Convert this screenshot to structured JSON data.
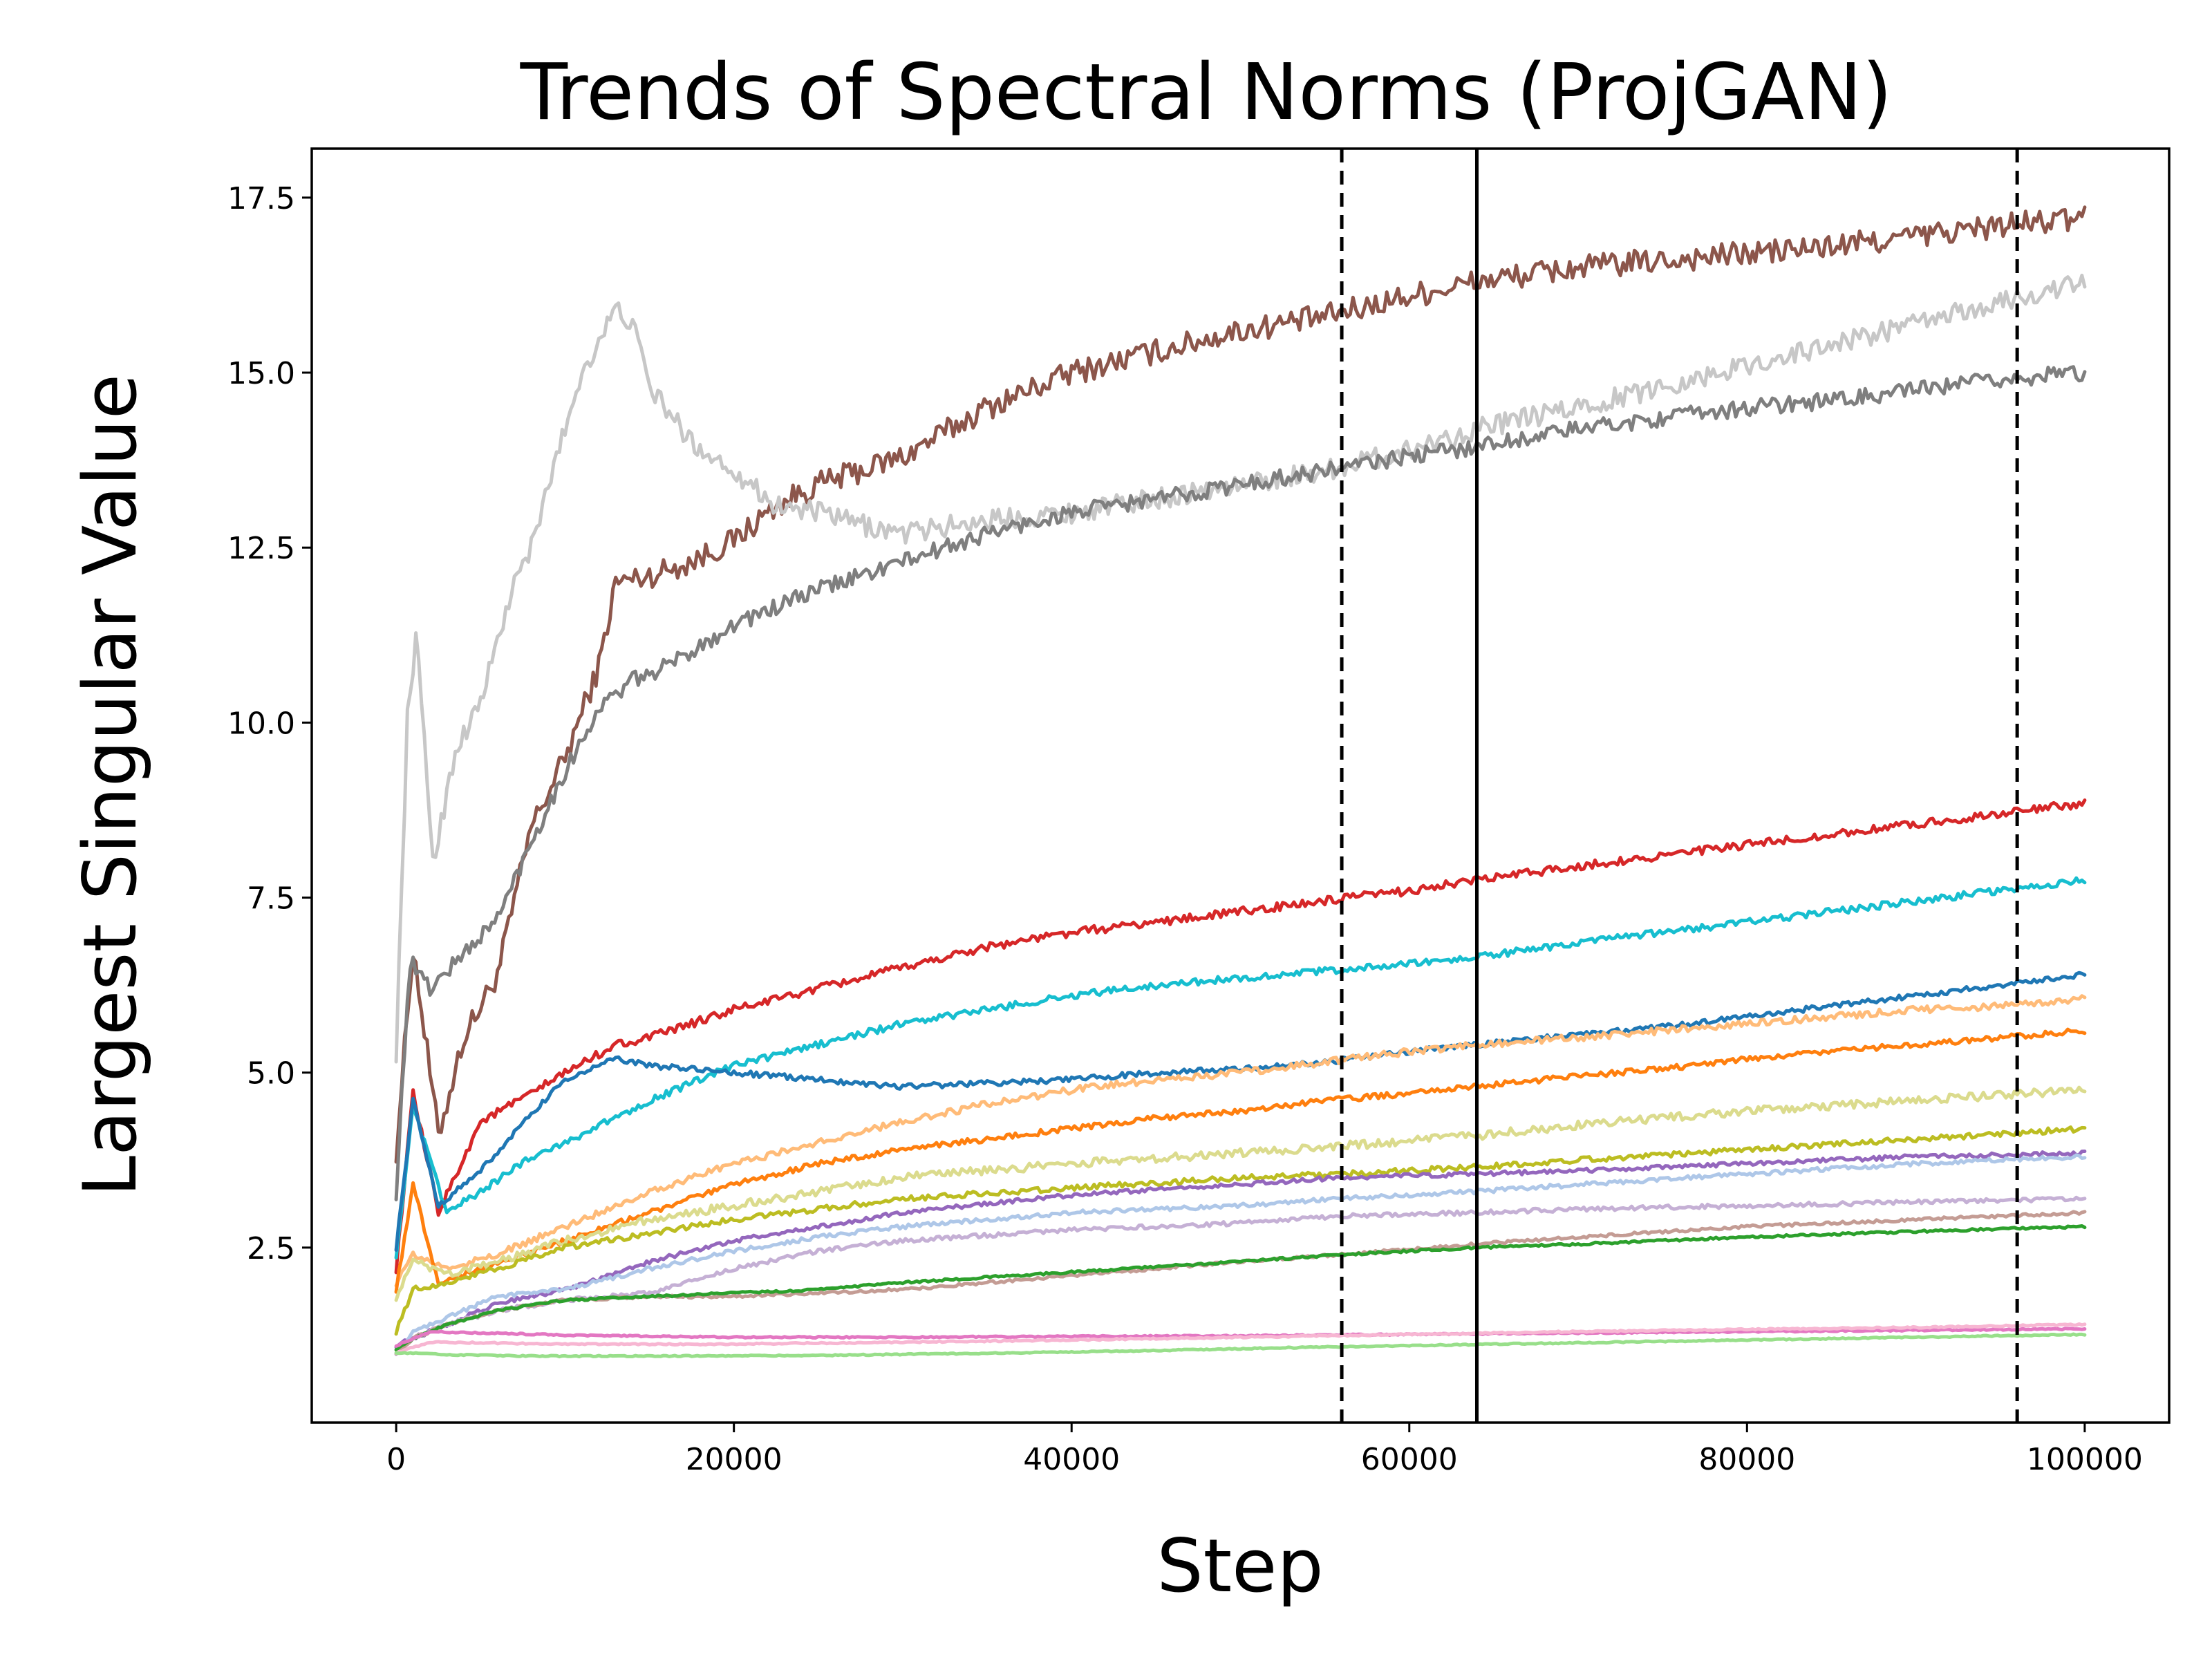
{
  "chart_data": {
    "type": "line",
    "title": "Trends of Spectral Norms (ProjGAN)",
    "xlabel": "Step",
    "ylabel": "Largest Singular Value",
    "xlim": [
      -5000,
      105000
    ],
    "ylim": [
      0,
      18.2
    ],
    "xticks": [
      0,
      20000,
      40000,
      60000,
      80000,
      100000
    ],
    "xtick_labels": [
      "0",
      "20000",
      "40000",
      "60000",
      "80000",
      "100000"
    ],
    "yticks": [
      2.5,
      5.0,
      7.5,
      10.0,
      12.5,
      15.0,
      17.5
    ],
    "ytick_labels": [
      "2.5",
      "5.0",
      "7.5",
      "10.0",
      "12.5",
      "15.0",
      "17.5"
    ],
    "grid": false,
    "vlines": [
      {
        "x": 56000,
        "style": "dashed"
      },
      {
        "x": 64000,
        "style": "solid"
      },
      {
        "x": 96000,
        "style": "dashed"
      }
    ],
    "series": [
      {
        "name": "brown",
        "color": "#8c564b",
        "noise": 0.18,
        "x": [
          0,
          1000,
          2500,
          4000,
          6000,
          8000,
          10000,
          12000,
          13000,
          15000,
          17500,
          20000,
          22500,
          25000,
          30000,
          35000,
          40000,
          45000,
          50000,
          55000,
          60000,
          64000,
          70000,
          75000,
          80000,
          85000,
          90000,
          95000,
          100000
        ],
        "values": [
          3.9,
          6.8,
          4.1,
          5.5,
          6.4,
          8.5,
          9.5,
          10.8,
          12.0,
          12.1,
          12.3,
          12.6,
          13.1,
          13.4,
          13.8,
          14.5,
          15.0,
          15.3,
          15.6,
          15.8,
          16.1,
          16.3,
          16.5,
          16.6,
          16.7,
          16.8,
          16.95,
          17.1,
          17.2
        ]
      },
      {
        "name": "light gray",
        "color": "#c7c7c7",
        "noise": 0.15,
        "x": [
          0,
          700,
          1200,
          2200,
          3500,
          5000,
          7000,
          8200,
          9000,
          11000,
          13000,
          14000,
          15000,
          17500,
          20000,
          22500,
          25000,
          28000,
          30000,
          35000,
          40000,
          45000,
          50000,
          55000,
          60000,
          64000,
          70000,
          75000,
          80000,
          85000,
          90000,
          95000,
          100000
        ],
        "values": [
          5.3,
          10.3,
          11.2,
          8.0,
          9.6,
          10.3,
          12.0,
          12.6,
          13.4,
          15.0,
          15.9,
          15.7,
          14.8,
          14.0,
          13.6,
          13.1,
          13.0,
          12.8,
          12.7,
          12.9,
          13.0,
          13.2,
          13.4,
          13.6,
          13.9,
          14.2,
          14.5,
          14.8,
          15.1,
          15.4,
          15.7,
          16.0,
          16.3
        ]
      },
      {
        "name": "gray",
        "color": "#7f7f7f",
        "noise": 0.12,
        "x": [
          0,
          800,
          2000,
          4000,
          6000,
          8000,
          10000,
          12000,
          14000,
          16000,
          20000,
          25000,
          30000,
          35000,
          40000,
          45000,
          50000,
          55000,
          60000,
          64000,
          70000,
          75000,
          80000,
          85000,
          90000,
          95000,
          100000
        ],
        "values": [
          3.3,
          6.6,
          6.2,
          6.7,
          7.2,
          8.3,
          9.3,
          10.2,
          10.6,
          10.8,
          11.4,
          11.9,
          12.3,
          12.7,
          13.0,
          13.2,
          13.4,
          13.6,
          13.8,
          13.95,
          14.2,
          14.35,
          14.5,
          14.6,
          14.75,
          14.9,
          15.0
        ]
      },
      {
        "name": "red",
        "color": "#d62728",
        "noise": 0.06,
        "x": [
          0,
          1000,
          2500,
          5000,
          8000,
          10000,
          13000,
          15000,
          20000,
          25000,
          30000,
          35000,
          40000,
          45000,
          50000,
          55000,
          60000,
          64000,
          70000,
          75000,
          80000,
          85000,
          90000,
          95000,
          100000
        ],
        "values": [
          2.2,
          4.7,
          3.0,
          4.3,
          4.7,
          5.0,
          5.4,
          5.5,
          5.9,
          6.2,
          6.5,
          6.8,
          7.0,
          7.15,
          7.3,
          7.45,
          7.6,
          7.75,
          7.95,
          8.1,
          8.25,
          8.4,
          8.55,
          8.7,
          8.85
        ]
      },
      {
        "name": "cyan",
        "color": "#17becf",
        "noise": 0.05,
        "x": [
          0,
          1000,
          3000,
          5000,
          8000,
          10000,
          15000,
          20000,
          25000,
          30000,
          35000,
          40000,
          45000,
          50000,
          55000,
          60000,
          64000,
          70000,
          75000,
          80000,
          85000,
          90000,
          95000,
          100000
        ],
        "values": [
          2.4,
          4.5,
          3.0,
          3.3,
          3.8,
          4.0,
          4.6,
          5.1,
          5.4,
          5.7,
          5.9,
          6.1,
          6.25,
          6.35,
          6.45,
          6.55,
          6.65,
          6.85,
          7.0,
          7.15,
          7.3,
          7.45,
          7.6,
          7.75
        ]
      },
      {
        "name": "blue",
        "color": "#1f77b4",
        "noise": 0.04,
        "x": [
          0,
          1000,
          2500,
          5000,
          8000,
          10000,
          13000,
          15000,
          20000,
          25000,
          30000,
          35000,
          40000,
          45000,
          50000,
          55000,
          60000,
          64000,
          70000,
          75000,
          80000,
          85000,
          90000,
          95000,
          100000
        ],
        "values": [
          2.5,
          4.6,
          3.1,
          3.6,
          4.4,
          4.9,
          5.2,
          5.1,
          5.0,
          4.9,
          4.8,
          4.85,
          4.9,
          5.0,
          5.05,
          5.15,
          5.3,
          5.4,
          5.55,
          5.65,
          5.8,
          5.95,
          6.1,
          6.25,
          6.4
        ]
      },
      {
        "name": "light orange",
        "color": "#ffbb78",
        "noise": 0.05,
        "x": [
          0,
          1000,
          3000,
          6000,
          10000,
          15000,
          20000,
          25000,
          30000,
          35000,
          40000,
          45000,
          50000,
          55000,
          60000,
          64000,
          70000,
          75000,
          80000,
          85000,
          90000,
          95000,
          100000
        ],
        "values": [
          2.0,
          2.4,
          2.2,
          2.4,
          2.8,
          3.3,
          3.7,
          4.0,
          4.3,
          4.55,
          4.75,
          4.9,
          5.0,
          5.15,
          5.3,
          5.4,
          5.5,
          5.6,
          5.7,
          5.8,
          5.9,
          5.95,
          6.05
        ]
      },
      {
        "name": "orange",
        "color": "#ff7f0e",
        "noise": 0.04,
        "x": [
          0,
          1000,
          2500,
          5000,
          10000,
          15000,
          20000,
          25000,
          30000,
          35000,
          40000,
          45000,
          50000,
          55000,
          60000,
          64000,
          70000,
          75000,
          80000,
          85000,
          90000,
          95000,
          100000
        ],
        "values": [
          1.9,
          3.4,
          2.0,
          2.2,
          2.6,
          3.0,
          3.4,
          3.7,
          3.9,
          4.05,
          4.2,
          4.35,
          4.45,
          4.6,
          4.7,
          4.8,
          4.95,
          5.05,
          5.2,
          5.3,
          5.4,
          5.5,
          5.6
        ]
      },
      {
        "name": "khaki",
        "color": "#dbdb8d",
        "noise": 0.06,
        "x": [
          0,
          1000,
          3000,
          6000,
          10000,
          15000,
          20000,
          25000,
          30000,
          40000,
          50000,
          56000,
          64000,
          70000,
          80000,
          90000,
          100000
        ],
        "values": [
          1.8,
          2.3,
          2.1,
          2.3,
          2.6,
          2.9,
          3.1,
          3.3,
          3.5,
          3.7,
          3.85,
          3.95,
          4.1,
          4.25,
          4.45,
          4.6,
          4.75
        ]
      },
      {
        "name": "olive",
        "color": "#bcbd22",
        "noise": 0.04,
        "x": [
          0,
          1000,
          3000,
          6000,
          10000,
          15000,
          20000,
          25000,
          30000,
          40000,
          50000,
          56000,
          64000,
          70000,
          80000,
          90000,
          100000
        ],
        "values": [
          1.3,
          1.9,
          2.0,
          2.2,
          2.5,
          2.7,
          2.9,
          3.05,
          3.2,
          3.35,
          3.5,
          3.55,
          3.65,
          3.75,
          3.9,
          4.05,
          4.2
        ]
      },
      {
        "name": "purple",
        "color": "#9467bd",
        "noise": 0.03,
        "x": [
          0,
          1000,
          3000,
          6000,
          10000,
          15000,
          20000,
          25000,
          30000,
          40000,
          50000,
          56000,
          64000,
          70000,
          80000,
          90000,
          100000
        ],
        "values": [
          1.1,
          1.2,
          1.4,
          1.7,
          1.9,
          2.3,
          2.6,
          2.8,
          3.0,
          3.25,
          3.4,
          3.5,
          3.55,
          3.6,
          3.7,
          3.8,
          3.85
        ]
      },
      {
        "name": "light blue",
        "color": "#aec7e8",
        "noise": 0.03,
        "x": [
          0,
          1000,
          3000,
          6000,
          10000,
          15000,
          20000,
          25000,
          30000,
          40000,
          50000,
          56000,
          64000,
          70000,
          80000,
          90000,
          100000
        ],
        "values": [
          1.0,
          1.3,
          1.5,
          1.8,
          1.9,
          2.2,
          2.45,
          2.65,
          2.8,
          3.0,
          3.1,
          3.2,
          3.3,
          3.4,
          3.55,
          3.7,
          3.8
        ]
      },
      {
        "name": "lavender",
        "color": "#c5b0d5",
        "noise": 0.03,
        "x": [
          0,
          1000,
          3000,
          6000,
          10000,
          15000,
          20000,
          25000,
          30000,
          40000,
          50000,
          56000,
          64000,
          70000,
          80000,
          90000,
          100000
        ],
        "values": [
          1.0,
          1.2,
          1.4,
          1.6,
          1.75,
          1.85,
          2.2,
          2.45,
          2.6,
          2.75,
          2.85,
          2.95,
          3.0,
          3.05,
          3.1,
          3.15,
          3.2
        ]
      },
      {
        "name": "rosy brown",
        "color": "#c49c94",
        "noise": 0.02,
        "x": [
          0,
          1000,
          3000,
          6000,
          10000,
          15000,
          20000,
          25000,
          30000,
          40000,
          50000,
          56000,
          64000,
          70000,
          80000,
          90000,
          100000
        ],
        "values": [
          1.0,
          1.2,
          1.4,
          1.6,
          1.75,
          1.8,
          1.8,
          1.85,
          1.9,
          2.1,
          2.3,
          2.4,
          2.55,
          2.65,
          2.8,
          2.9,
          3.0
        ]
      },
      {
        "name": "green",
        "color": "#2ca02c",
        "noise": 0.015,
        "x": [
          0,
          1000,
          3000,
          6000,
          10000,
          15000,
          20000,
          25000,
          30000,
          40000,
          50000,
          56000,
          64000,
          70000,
          80000,
          90000,
          100000
        ],
        "values": [
          1.05,
          1.2,
          1.4,
          1.6,
          1.75,
          1.8,
          1.85,
          1.9,
          2.0,
          2.15,
          2.3,
          2.4,
          2.5,
          2.55,
          2.65,
          2.73,
          2.8
        ]
      },
      {
        "name": "magenta",
        "color": "#e377c2",
        "noise": 0.01,
        "x": [
          0,
          2000,
          10000,
          20000,
          30000,
          40000,
          50000,
          60000,
          70000,
          80000,
          90000,
          100000
        ],
        "values": [
          1.1,
          1.3,
          1.25,
          1.22,
          1.22,
          1.23,
          1.24,
          1.26,
          1.28,
          1.3,
          1.32,
          1.34
        ]
      },
      {
        "name": "pink",
        "color": "#f7b6d2",
        "noise": 0.01,
        "x": [
          0,
          2000,
          10000,
          20000,
          30000,
          40000,
          50000,
          60000,
          70000,
          80000,
          90000,
          100000
        ],
        "values": [
          1.0,
          1.15,
          1.12,
          1.12,
          1.15,
          1.18,
          1.22,
          1.26,
          1.3,
          1.33,
          1.36,
          1.4
        ]
      },
      {
        "name": "light green",
        "color": "#98df8a",
        "noise": 0.008,
        "x": [
          0,
          3000,
          8000,
          15000,
          25000,
          35000,
          45000,
          55000,
          65000,
          75000,
          85000,
          95000,
          100000
        ],
        "values": [
          1.0,
          0.97,
          0.95,
          0.95,
          0.96,
          0.99,
          1.03,
          1.08,
          1.12,
          1.16,
          1.2,
          1.24,
          1.26
        ]
      }
    ]
  }
}
